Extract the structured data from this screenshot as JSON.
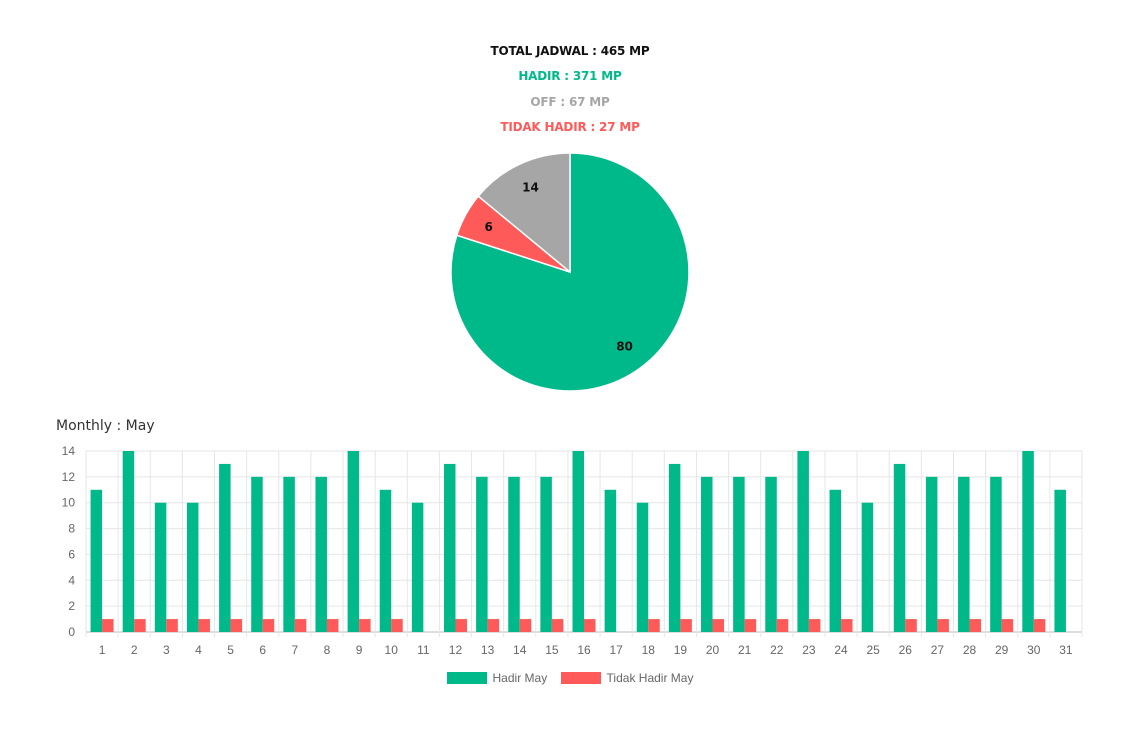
{
  "summary": {
    "total": "TOTAL JADWAL : 465 MP",
    "hadir": "HADIR : 371 MP",
    "off": "OFF : 67 MP",
    "tidak_hadir": "TIDAK HADIR : 27 MP"
  },
  "colors": {
    "total": "#111111",
    "hadir": "#00b98a",
    "off": "#a6a6a6",
    "tidak_hadir": "#ff5a5a"
  },
  "monthly_title": "Monthly : May",
  "chart_data": [
    {
      "type": "pie",
      "slices": [
        {
          "label": "80",
          "value": 80,
          "color": "#00b98a"
        },
        {
          "label": "6",
          "value": 6,
          "color": "#ff5a5a"
        },
        {
          "label": "14",
          "value": 14,
          "color": "#a6a6a6"
        }
      ]
    },
    {
      "type": "bar",
      "categories": [
        "1",
        "2",
        "3",
        "4",
        "5",
        "6",
        "7",
        "8",
        "9",
        "10",
        "11",
        "12",
        "13",
        "14",
        "15",
        "16",
        "17",
        "18",
        "19",
        "20",
        "21",
        "22",
        "23",
        "24",
        "25",
        "26",
        "27",
        "28",
        "29",
        "30",
        "31"
      ],
      "series": [
        {
          "name": "Hadir May",
          "color": "#00b98a",
          "values": [
            11,
            14,
            10,
            10,
            13,
            12,
            12,
            12,
            14,
            11,
            10,
            13,
            12,
            12,
            12,
            14,
            11,
            10,
            13,
            12,
            12,
            12,
            14,
            11,
            10,
            13,
            12,
            12,
            12,
            14,
            11
          ]
        },
        {
          "name": "Tidak Hadir May",
          "color": "#ff5a5a",
          "values": [
            1,
            1,
            1,
            1,
            1,
            1,
            1,
            1,
            1,
            1,
            0,
            1,
            1,
            1,
            1,
            1,
            0,
            1,
            1,
            1,
            1,
            1,
            1,
            1,
            0,
            1,
            1,
            1,
            1,
            1,
            0
          ]
        }
      ],
      "y_ticks": [
        "0",
        "2",
        "4",
        "6",
        "8",
        "10",
        "12",
        "14"
      ],
      "ylim": [
        0,
        14
      ],
      "grid": true,
      "legend": "bottom"
    }
  ]
}
